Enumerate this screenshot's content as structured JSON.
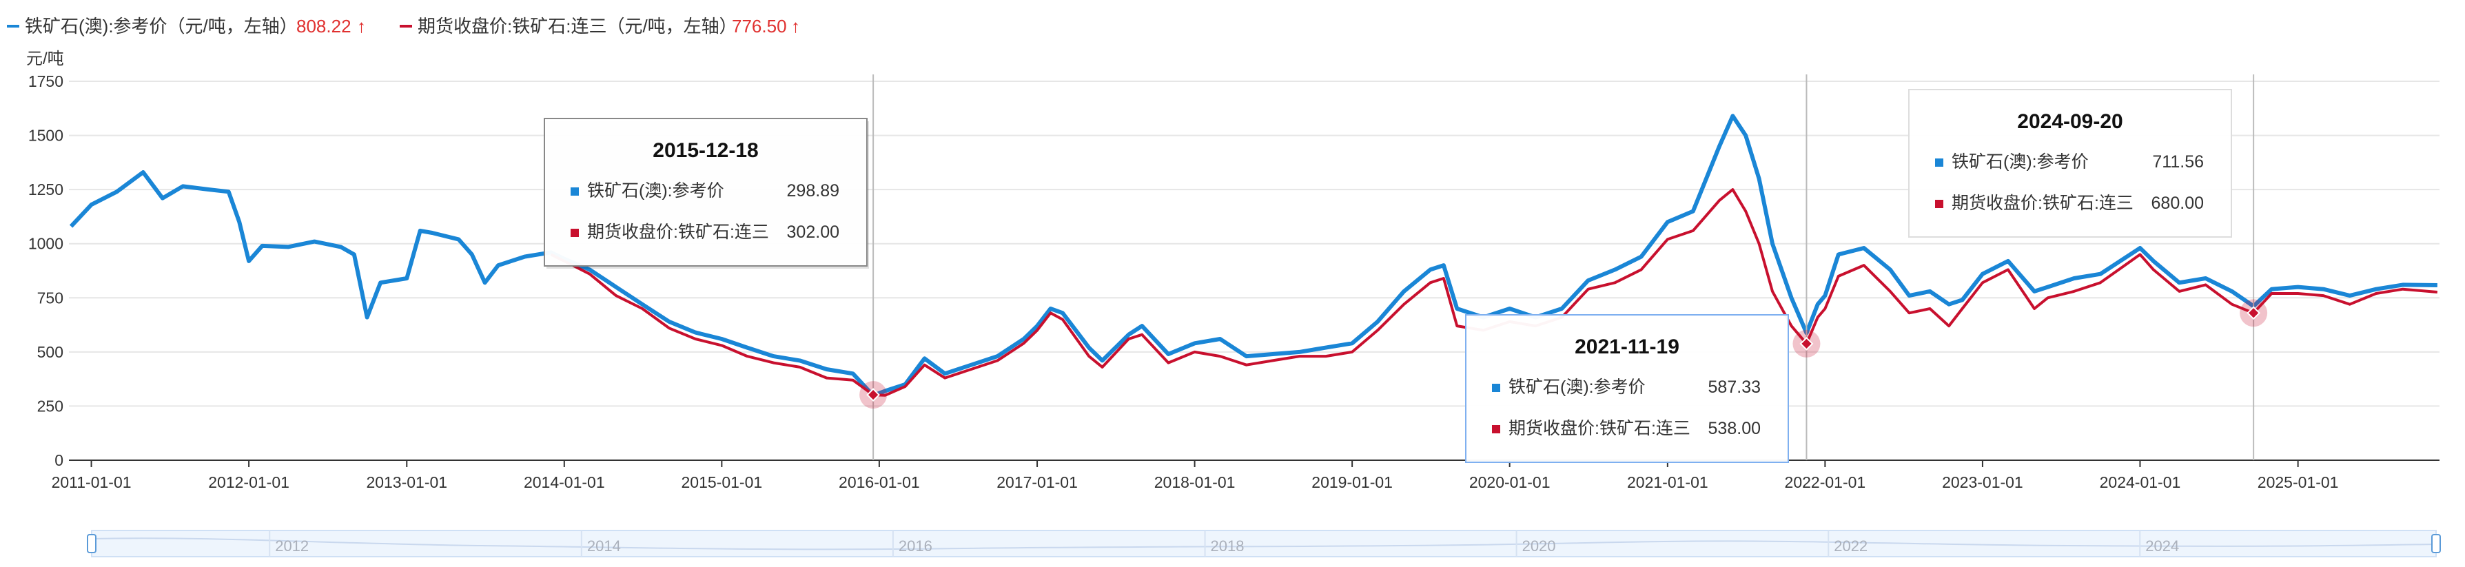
{
  "legend": [
    {
      "name": "铁矿石(澳):参考价（元/吨，左轴）",
      "value": "808.22",
      "arrow": "↑",
      "color": "#1a86d6"
    },
    {
      "name": "期货收盘价:铁矿石:连三（元/吨，左轴）",
      "value": "776.50",
      "arrow": "↑",
      "color": "#c8102e"
    }
  ],
  "colors": {
    "series1": "#1a86d6",
    "series2": "#c8102e",
    "grid": "#e6e6e6",
    "axis": "#333333",
    "highlight_border": "#7fb0f0"
  },
  "chart_data": {
    "type": "line",
    "ylabel": "元/吨",
    "ylim": [
      0,
      1750
    ],
    "yticks": [
      0,
      250,
      500,
      750,
      1000,
      1250,
      1500,
      1750
    ],
    "xlim": [
      "2010-11-10",
      "2025-11-25"
    ],
    "xticks": [
      "2011-01-01",
      "2012-01-01",
      "2013-01-01",
      "2014-01-01",
      "2015-01-01",
      "2016-01-01",
      "2017-01-01",
      "2018-01-01",
      "2019-01-01",
      "2020-01-01",
      "2021-01-01",
      "2022-01-01",
      "2023-01-01",
      "2024-01-01",
      "2025-01-01"
    ],
    "grid": true,
    "legend_position": "top-left",
    "series": [
      {
        "name": "铁矿石(澳):参考价",
        "color": "#1a86d6",
        "points": [
          [
            "2010-11-15",
            1080
          ],
          [
            "2011-01-01",
            1180
          ],
          [
            "2011-03-01",
            1240
          ],
          [
            "2011-05-01",
            1330
          ],
          [
            "2011-06-15",
            1210
          ],
          [
            "2011-08-01",
            1265
          ],
          [
            "2011-10-01",
            1250
          ],
          [
            "2011-11-15",
            1240
          ],
          [
            "2011-12-10",
            1100
          ],
          [
            "2012-01-01",
            920
          ],
          [
            "2012-02-01",
            990
          ],
          [
            "2012-04-01",
            985
          ],
          [
            "2012-06-01",
            1010
          ],
          [
            "2012-08-01",
            985
          ],
          [
            "2012-09-01",
            950
          ],
          [
            "2012-10-01",
            660
          ],
          [
            "2012-11-01",
            820
          ],
          [
            "2013-01-01",
            840
          ],
          [
            "2013-02-01",
            1060
          ],
          [
            "2013-03-01",
            1050
          ],
          [
            "2013-05-01",
            1020
          ],
          [
            "2013-06-01",
            950
          ],
          [
            "2013-07-01",
            820
          ],
          [
            "2013-08-01",
            900
          ],
          [
            "2013-10-01",
            940
          ],
          [
            "2013-12-01",
            960
          ],
          [
            "2014-01-01",
            930
          ],
          [
            "2014-03-01",
            880
          ],
          [
            "2014-05-01",
            800
          ],
          [
            "2014-07-01",
            720
          ],
          [
            "2014-09-01",
            640
          ],
          [
            "2014-11-01",
            590
          ],
          [
            "2015-01-01",
            560
          ],
          [
            "2015-03-01",
            520
          ],
          [
            "2015-05-01",
            480
          ],
          [
            "2015-07-01",
            460
          ],
          [
            "2015-09-01",
            420
          ],
          [
            "2015-11-01",
            400
          ],
          [
            "2015-12-18",
            298.89
          ],
          [
            "2016-01-15",
            320
          ],
          [
            "2016-03-01",
            350
          ],
          [
            "2016-04-15",
            470
          ],
          [
            "2016-06-01",
            400
          ],
          [
            "2016-08-01",
            440
          ],
          [
            "2016-10-01",
            480
          ],
          [
            "2016-12-01",
            560
          ],
          [
            "2017-01-01",
            620
          ],
          [
            "2017-02-01",
            700
          ],
          [
            "2017-03-01",
            680
          ],
          [
            "2017-05-01",
            520
          ],
          [
            "2017-06-01",
            460
          ],
          [
            "2017-08-01",
            580
          ],
          [
            "2017-09-01",
            620
          ],
          [
            "2017-11-01",
            490
          ],
          [
            "2018-01-01",
            540
          ],
          [
            "2018-03-01",
            560
          ],
          [
            "2018-05-01",
            480
          ],
          [
            "2018-07-01",
            490
          ],
          [
            "2018-09-01",
            500
          ],
          [
            "2018-11-01",
            520
          ],
          [
            "2019-01-01",
            540
          ],
          [
            "2019-03-01",
            640
          ],
          [
            "2019-05-01",
            780
          ],
          [
            "2019-07-01",
            880
          ],
          [
            "2019-08-01",
            900
          ],
          [
            "2019-09-01",
            700
          ],
          [
            "2019-11-01",
            660
          ],
          [
            "2020-01-01",
            700
          ],
          [
            "2020-03-01",
            660
          ],
          [
            "2020-05-01",
            700
          ],
          [
            "2020-07-01",
            830
          ],
          [
            "2020-09-01",
            880
          ],
          [
            "2020-11-01",
            940
          ],
          [
            "2021-01-01",
            1100
          ],
          [
            "2021-03-01",
            1150
          ],
          [
            "2021-05-01",
            1450
          ],
          [
            "2021-06-01",
            1590
          ],
          [
            "2021-07-01",
            1500
          ],
          [
            "2021-08-01",
            1300
          ],
          [
            "2021-09-01",
            1000
          ],
          [
            "2021-10-15",
            750
          ],
          [
            "2021-11-19",
            587.33
          ],
          [
            "2021-12-15",
            720
          ],
          [
            "2022-01-01",
            760
          ],
          [
            "2022-02-01",
            950
          ],
          [
            "2022-04-01",
            980
          ],
          [
            "2022-06-01",
            880
          ],
          [
            "2022-07-15",
            760
          ],
          [
            "2022-09-01",
            780
          ],
          [
            "2022-10-15",
            720
          ],
          [
            "2022-11-15",
            740
          ],
          [
            "2023-01-01",
            860
          ],
          [
            "2023-03-01",
            920
          ],
          [
            "2023-05-01",
            780
          ],
          [
            "2023-06-01",
            800
          ],
          [
            "2023-08-01",
            840
          ],
          [
            "2023-10-01",
            860
          ],
          [
            "2024-01-01",
            980
          ],
          [
            "2024-02-01",
            920
          ],
          [
            "2024-04-01",
            820
          ],
          [
            "2024-06-01",
            840
          ],
          [
            "2024-08-01",
            780
          ],
          [
            "2024-09-20",
            711.56
          ],
          [
            "2024-11-01",
            790
          ],
          [
            "2025-01-01",
            800
          ],
          [
            "2025-03-01",
            790
          ],
          [
            "2025-05-01",
            760
          ],
          [
            "2025-07-01",
            790
          ],
          [
            "2025-09-01",
            810
          ],
          [
            "2025-11-20",
            808.22
          ]
        ]
      },
      {
        "name": "期货收盘价:铁矿石:连三",
        "color": "#c8102e",
        "points": [
          [
            "2013-12-01",
            950
          ],
          [
            "2014-01-01",
            920
          ],
          [
            "2014-03-01",
            860
          ],
          [
            "2014-05-01",
            760
          ],
          [
            "2014-07-01",
            700
          ],
          [
            "2014-09-01",
            610
          ],
          [
            "2014-11-01",
            560
          ],
          [
            "2015-01-01",
            530
          ],
          [
            "2015-03-01",
            480
          ],
          [
            "2015-05-01",
            450
          ],
          [
            "2015-07-01",
            430
          ],
          [
            "2015-09-01",
            380
          ],
          [
            "2015-11-01",
            370
          ],
          [
            "2015-12-18",
            302.0
          ],
          [
            "2016-01-15",
            300
          ],
          [
            "2016-03-01",
            340
          ],
          [
            "2016-04-15",
            440
          ],
          [
            "2016-06-01",
            380
          ],
          [
            "2016-08-01",
            420
          ],
          [
            "2016-10-01",
            460
          ],
          [
            "2016-12-01",
            540
          ],
          [
            "2017-01-01",
            600
          ],
          [
            "2017-02-01",
            680
          ],
          [
            "2017-03-01",
            650
          ],
          [
            "2017-05-01",
            480
          ],
          [
            "2017-06-01",
            430
          ],
          [
            "2017-08-01",
            560
          ],
          [
            "2017-09-01",
            580
          ],
          [
            "2017-11-01",
            450
          ],
          [
            "2018-01-01",
            500
          ],
          [
            "2018-03-01",
            480
          ],
          [
            "2018-05-01",
            440
          ],
          [
            "2018-07-01",
            460
          ],
          [
            "2018-09-01",
            480
          ],
          [
            "2018-11-01",
            480
          ],
          [
            "2019-01-01",
            500
          ],
          [
            "2019-03-01",
            600
          ],
          [
            "2019-05-01",
            720
          ],
          [
            "2019-07-01",
            820
          ],
          [
            "2019-08-01",
            840
          ],
          [
            "2019-09-01",
            620
          ],
          [
            "2019-11-01",
            600
          ],
          [
            "2020-01-01",
            640
          ],
          [
            "2020-03-01",
            620
          ],
          [
            "2020-05-01",
            660
          ],
          [
            "2020-07-01",
            790
          ],
          [
            "2020-09-01",
            820
          ],
          [
            "2020-11-01",
            880
          ],
          [
            "2021-01-01",
            1020
          ],
          [
            "2021-03-01",
            1060
          ],
          [
            "2021-05-01",
            1200
          ],
          [
            "2021-06-01",
            1250
          ],
          [
            "2021-07-01",
            1150
          ],
          [
            "2021-08-01",
            1000
          ],
          [
            "2021-09-01",
            780
          ],
          [
            "2021-10-15",
            620
          ],
          [
            "2021-11-19",
            538.0
          ],
          [
            "2021-12-15",
            660
          ],
          [
            "2022-01-01",
            700
          ],
          [
            "2022-02-01",
            850
          ],
          [
            "2022-04-01",
            900
          ],
          [
            "2022-06-01",
            780
          ],
          [
            "2022-07-15",
            680
          ],
          [
            "2022-09-01",
            700
          ],
          [
            "2022-10-15",
            620
          ],
          [
            "2022-11-15",
            700
          ],
          [
            "2023-01-01",
            820
          ],
          [
            "2023-03-01",
            880
          ],
          [
            "2023-05-01",
            700
          ],
          [
            "2023-06-01",
            750
          ],
          [
            "2023-08-01",
            780
          ],
          [
            "2023-10-01",
            820
          ],
          [
            "2024-01-01",
            950
          ],
          [
            "2024-02-01",
            880
          ],
          [
            "2024-04-01",
            780
          ],
          [
            "2024-06-01",
            810
          ],
          [
            "2024-08-01",
            720
          ],
          [
            "2024-09-20",
            680.0
          ],
          [
            "2024-11-01",
            770
          ],
          [
            "2025-01-01",
            770
          ],
          [
            "2025-03-01",
            760
          ],
          [
            "2025-05-01",
            720
          ],
          [
            "2025-07-01",
            770
          ],
          [
            "2025-09-01",
            790
          ],
          [
            "2025-11-20",
            776.5
          ]
        ]
      }
    ],
    "tooltips": [
      {
        "date": "2015-12-18",
        "s1_label": "铁矿石(澳):参考价",
        "s1_value": "298.89",
        "s2_label": "期货收盘价:铁矿石:连三",
        "s2_value": "302.00"
      },
      {
        "date": "2021-11-19",
        "s1_label": "铁矿石(澳):参考价",
        "s1_value": "587.33",
        "s2_label": "期货收盘价:铁矿石:连三",
        "s2_value": "538.00"
      },
      {
        "date": "2024-09-20",
        "s1_label": "铁矿石(澳):参考价",
        "s1_value": "711.56",
        "s2_label": "期货收盘价:铁矿石:连三",
        "s2_value": "680.00"
      }
    ]
  },
  "slider": {
    "labels": [
      "2012",
      "2014",
      "2016",
      "2018",
      "2020",
      "2022",
      "2024"
    ],
    "range": [
      "2010-11-10",
      "2025-11-25"
    ]
  }
}
